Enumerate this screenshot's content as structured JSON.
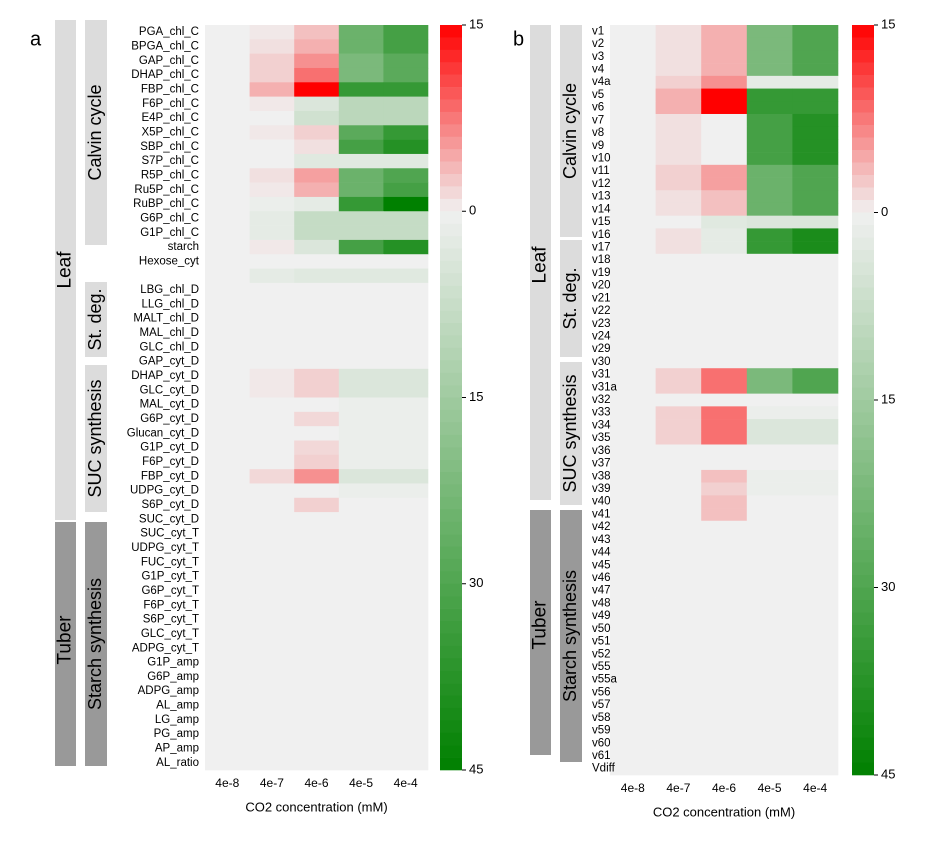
{
  "chart_data": [
    {
      "type": "heatmap",
      "label": "a",
      "categories": [
        "4e-8",
        "4e-7",
        "4e-6",
        "4e-5",
        "4e-4"
      ],
      "rows": [
        "PGA_chl_C",
        "BPGA_chl_C",
        "GAP_chl_C",
        "DHAP_chl_C",
        "FBP_chl_C",
        "F6P_chl_C",
        "E4P_chl_C",
        "X5P_chl_C",
        "SBP_chl_C",
        "S7P_chl_C",
        "R5P_chl_C",
        "Ru5P_chl_C",
        "RuBP_chl_C",
        "G6P_chl_C",
        "G1P_chl_C",
        "starch",
        "Hexose_cyt",
        null,
        "LBG_chl_D",
        "LLG_chl_D",
        "MALT_chl_D",
        "MAL_chl_D",
        "GLC_chl_D",
        "GAP_cyt_D",
        "DHAP_cyt_D",
        "GLC_cyt_D",
        "MAL_cyt_D",
        "G6P_cyt_D",
        "Glucan_cyt_D",
        "G1P_cyt_D",
        "F6P_cyt_D",
        "FBP_cyt_D",
        "UDPG_cyt_D",
        "S6P_cyt_D",
        "SUC_cyt_D",
        "SUC_cyt_T",
        "UDPG_cyt_T",
        "FUC_cyt_T",
        "G1P_cyt_T",
        "G6P_cyt_T",
        "F6P_cyt_T",
        "S6P_cyt_T",
        "GLC_cyt_T",
        "ADPG_cyt_T",
        "G1P_amp",
        "G6P_amp",
        "ADPG_amp",
        "AL_amp",
        "LG_amp",
        "PG_amp",
        "AP_amp",
        "AL_ratio"
      ],
      "values": [
        [
          0,
          0.5,
          3,
          -25,
          -32
        ],
        [
          0,
          1,
          4,
          -25,
          -32
        ],
        [
          0,
          2,
          6,
          -22,
          -28
        ],
        [
          0,
          2,
          8,
          -22,
          -28
        ],
        [
          0,
          4,
          15,
          -35,
          -35
        ],
        [
          0,
          0.5,
          -4,
          -10,
          -10
        ],
        [
          0,
          0,
          -6,
          -10,
          -10
        ],
        [
          0,
          0.5,
          2,
          -28,
          -35
        ],
        [
          0,
          0,
          1,
          -32,
          -38
        ],
        [
          0,
          0,
          -3,
          -3,
          -3
        ],
        [
          0,
          1,
          5,
          -25,
          -30
        ],
        [
          0,
          0.5,
          4,
          -25,
          -32
        ],
        [
          0,
          -1,
          -2,
          -35,
          -45
        ],
        [
          0,
          -2,
          -8,
          -8,
          -8
        ],
        [
          0,
          -2,
          -8,
          -8,
          -8
        ],
        [
          0,
          0.5,
          -4,
          -32,
          -38
        ],
        [
          0,
          0,
          0,
          0,
          0
        ],
        [
          0,
          -2,
          -3,
          -3,
          -3
        ],
        [
          0,
          0,
          0,
          0,
          0
        ],
        [
          0,
          0,
          0,
          0,
          0
        ],
        [
          0,
          0,
          0,
          0,
          0
        ],
        [
          0,
          0,
          0,
          0,
          0
        ],
        [
          0,
          0,
          0,
          0,
          0
        ],
        [
          0,
          0,
          0,
          0,
          0
        ],
        [
          0,
          0.5,
          2,
          -4,
          -4
        ],
        [
          0,
          0.5,
          2,
          -4,
          -4
        ],
        [
          0,
          0,
          0,
          -1,
          -1
        ],
        [
          0,
          0,
          1.5,
          -1,
          -1
        ],
        [
          0,
          0,
          0,
          -1,
          -1
        ],
        [
          0,
          0,
          1.5,
          -1,
          -1
        ],
        [
          0,
          0,
          2,
          -1,
          -1
        ],
        [
          0,
          1.5,
          6,
          -4,
          -4
        ],
        [
          0,
          0,
          0,
          -1,
          -1
        ],
        [
          0,
          0,
          2,
          0,
          0
        ],
        [
          0,
          0,
          0,
          0,
          0
        ],
        [
          0,
          0,
          0,
          0,
          0
        ],
        [
          0,
          0,
          0,
          0,
          0
        ],
        [
          0,
          0,
          0,
          0,
          0
        ],
        [
          0,
          0,
          0,
          0,
          0
        ],
        [
          0,
          0,
          0,
          0,
          0
        ],
        [
          0,
          0,
          0,
          0,
          0
        ],
        [
          0,
          0,
          0,
          0,
          0
        ],
        [
          0,
          0,
          0,
          0,
          0
        ],
        [
          0,
          0,
          0,
          0,
          0
        ],
        [
          0,
          0,
          0,
          0,
          0
        ],
        [
          0,
          0,
          0,
          0,
          0
        ],
        [
          0,
          0,
          0,
          0,
          0
        ],
        [
          0,
          0,
          0,
          0,
          0
        ],
        [
          0,
          0,
          0,
          0,
          0
        ],
        [
          0,
          0,
          0,
          0,
          0
        ],
        [
          0,
          0,
          0,
          0,
          0
        ],
        [
          0,
          0,
          0,
          0,
          0
        ]
      ],
      "clim": [
        -45,
        15
      ],
      "cticks": [
        15,
        0,
        {
          "value": -15,
          "label": "15"
        },
        {
          "value": -30,
          "label": "30"
        },
        {
          "value": -45,
          "label": "45"
        }
      ],
      "colors": {
        "negative": "#008000",
        "zero": "#f0f0f0",
        "positive": "#ff0000"
      },
      "xlabel": "CO2 concentration (mM)",
      "groups": [
        "Leaf",
        "Tuber"
      ],
      "subgroups": [
        "Calvin cycle",
        "St. deg.",
        "SUC synthesis",
        "Starch synthesis"
      ]
    },
    {
      "type": "heatmap",
      "label": "b",
      "categories": [
        "4e-8",
        "4e-7",
        "4e-6",
        "4e-5",
        "4e-4"
      ],
      "rows": [
        "v1",
        "v2",
        "v3",
        "v4",
        "v4a",
        "v5",
        "v6",
        "v7",
        "v8",
        "v9",
        "v10",
        "v11",
        "v12",
        "v13",
        "v14",
        "v15",
        "v16",
        "v17",
        "v18",
        "v19",
        "v20",
        "v21",
        "v22",
        "v23",
        "v24",
        "v29",
        "v30",
        "v31",
        "v31a",
        "v32",
        "v33",
        "v34",
        "v35",
        "v36",
        "v37",
        "v38",
        "v39",
        "v40",
        "v41",
        "v42",
        "v43",
        "v44",
        "v45",
        "v46",
        "v47",
        "v48",
        "v49",
        "v50",
        "v51",
        "v52",
        "v55",
        "v55a",
        "v56",
        "v57",
        "v58",
        "v59",
        "v60",
        "v61",
        "Vdiff"
      ],
      "values": [
        [
          0,
          1,
          4,
          -22,
          -30
        ],
        [
          0,
          1,
          4,
          -22,
          -30
        ],
        [
          0,
          1,
          4,
          -22,
          -30
        ],
        [
          0,
          1,
          4,
          -22,
          -30
        ],
        [
          0,
          2,
          6,
          -2,
          -2
        ],
        [
          0,
          4,
          15,
          -35,
          -35
        ],
        [
          0,
          4,
          15,
          -35,
          -35
        ],
        [
          0,
          1,
          0,
          -32,
          -38
        ],
        [
          0,
          1,
          0,
          -32,
          -38
        ],
        [
          0,
          1,
          0,
          -32,
          -38
        ],
        [
          0,
          1,
          0,
          -32,
          -38
        ],
        [
          0,
          2,
          5,
          -25,
          -30
        ],
        [
          0,
          2,
          5,
          -25,
          -30
        ],
        [
          0,
          1,
          3,
          -25,
          -30
        ],
        [
          0,
          1,
          3,
          -25,
          -30
        ],
        [
          0,
          0,
          -3,
          -4,
          -4
        ],
        [
          0,
          1,
          -2,
          -35,
          -40
        ],
        [
          0,
          1,
          -2,
          -35,
          -40
        ],
        [
          0,
          0,
          0,
          0,
          0
        ],
        [
          0,
          0,
          0,
          0,
          0
        ],
        [
          0,
          0,
          0,
          0,
          0
        ],
        [
          0,
          0,
          0,
          0,
          0
        ],
        [
          0,
          0,
          0,
          0,
          0
        ],
        [
          0,
          0,
          0,
          0,
          0
        ],
        [
          0,
          0,
          0,
          0,
          0
        ],
        [
          0,
          0,
          0,
          0,
          0
        ],
        [
          0,
          0,
          0,
          0,
          0
        ],
        [
          0,
          2,
          8,
          -22,
          -30
        ],
        [
          0,
          2,
          8,
          -22,
          -30
        ],
        [
          0,
          0,
          0,
          0,
          0
        ],
        [
          0,
          2,
          8,
          -1,
          -1
        ],
        [
          0,
          2,
          8,
          -4,
          -4
        ],
        [
          0,
          2,
          8,
          -4,
          -4
        ],
        [
          0,
          0,
          0,
          0,
          0
        ],
        [
          0,
          0,
          0,
          0,
          0
        ],
        [
          0,
          0,
          3,
          -1,
          -1
        ],
        [
          0,
          0,
          2,
          -1,
          -1
        ],
        [
          0,
          0,
          3,
          0,
          0
        ],
        [
          0,
          0,
          3,
          0,
          0
        ],
        [
          0,
          0,
          0,
          0,
          0
        ],
        [
          0,
          0,
          0,
          0,
          0
        ],
        [
          0,
          0,
          0,
          0,
          0
        ],
        [
          0,
          0,
          0,
          0,
          0
        ],
        [
          0,
          0,
          0,
          0,
          0
        ],
        [
          0,
          0,
          0,
          0,
          0
        ],
        [
          0,
          0,
          0,
          0,
          0
        ],
        [
          0,
          0,
          0,
          0,
          0
        ],
        [
          0,
          0,
          0,
          0,
          0
        ],
        [
          0,
          0,
          0,
          0,
          0
        ],
        [
          0,
          0,
          0,
          0,
          0
        ],
        [
          0,
          0,
          0,
          0,
          0
        ],
        [
          0,
          0,
          0,
          0,
          0
        ],
        [
          0,
          0,
          0,
          0,
          0
        ],
        [
          0,
          0,
          0,
          0,
          0
        ],
        [
          0,
          0,
          0,
          0,
          0
        ],
        [
          0,
          0,
          0,
          0,
          0
        ],
        [
          0,
          0,
          0,
          0,
          0
        ],
        [
          0,
          0,
          0,
          0,
          0
        ],
        [
          0,
          0,
          0,
          0,
          0
        ]
      ],
      "clim": [
        -45,
        15
      ],
      "cticks": [
        15,
        0,
        {
          "value": -15,
          "label": "15"
        },
        {
          "value": -30,
          "label": "30"
        },
        {
          "value": -45,
          "label": "45"
        }
      ],
      "colors": {
        "negative": "#008000",
        "zero": "#f0f0f0",
        "positive": "#ff0000"
      },
      "xlabel": "CO2 concentration (mM)",
      "groups": [
        "Leaf",
        "Tuber"
      ],
      "subgroups": [
        "Calvin cycle",
        "St. deg.",
        "SUC synthesis",
        "Starch synthesis"
      ]
    }
  ]
}
